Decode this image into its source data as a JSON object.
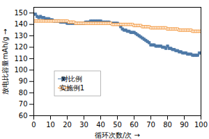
{
  "chart_data": {
    "type": "line",
    "xlabel": "循环次数/次",
    "ylabel": "放电比容量mAh/g",
    "x": [
      0,
      1,
      2,
      3,
      4,
      5,
      6,
      7,
      8,
      9,
      10,
      11,
      12,
      13,
      14,
      15,
      16,
      17,
      18,
      19,
      20,
      21,
      22,
      23,
      24,
      25,
      26,
      27,
      28,
      29,
      30,
      31,
      32,
      33,
      34,
      35,
      36,
      37,
      38,
      39,
      40,
      41,
      42,
      43,
      44,
      45,
      46,
      47,
      48,
      49,
      50,
      51,
      52,
      53,
      54,
      55,
      56,
      57,
      58,
      59,
      60,
      61,
      62,
      63,
      64,
      65,
      66,
      67,
      68,
      69,
      70,
      71,
      72,
      73,
      74,
      75,
      76,
      77,
      78,
      79,
      80,
      81,
      82,
      83,
      84,
      85,
      86,
      87,
      88,
      89,
      90,
      91,
      92,
      93,
      94,
      95,
      96,
      97,
      98,
      99,
      100
    ],
    "series": [
      {
        "name": "对比例",
        "marker": "square",
        "values": [
          149,
          149,
          147,
          146,
          147,
          146,
          146,
          145,
          145,
          145,
          144,
          144,
          143,
          143,
          143,
          143,
          142,
          142,
          142,
          142,
          141,
          141,
          141,
          141,
          141,
          141,
          141,
          141,
          141,
          141,
          141,
          142,
          142,
          142,
          143,
          143,
          143,
          143,
          143,
          143,
          143,
          142,
          142,
          142,
          142,
          142,
          141,
          141,
          141,
          141,
          141,
          140,
          138,
          136,
          135,
          135,
          134,
          134,
          133,
          133,
          133,
          132,
          131,
          130,
          129,
          128,
          127,
          126,
          125,
          124,
          122,
          122,
          122,
          121,
          121,
          121,
          121,
          120,
          120,
          119,
          121,
          119,
          119,
          118,
          118,
          117,
          117,
          116,
          116,
          115,
          115,
          115,
          114,
          114,
          114,
          113,
          113,
          113,
          113,
          115,
          115
        ]
      },
      {
        "name": "实施例1",
        "marker": "open_square",
        "values": [
          143,
          143,
          143,
          143,
          143,
          143,
          143,
          143,
          143,
          143,
          143,
          143,
          143,
          143,
          143,
          143,
          143,
          143,
          143,
          143,
          143,
          142,
          142,
          142,
          142,
          141,
          141,
          141,
          141,
          141,
          141,
          141,
          141,
          141,
          141,
          141,
          141,
          141,
          141,
          141,
          141,
          141,
          141,
          141,
          141,
          141,
          141,
          140,
          140,
          140,
          140,
          140,
          140,
          140,
          140,
          140,
          140,
          140,
          140,
          140,
          139,
          139,
          139,
          139,
          139,
          138,
          138,
          138,
          138,
          138,
          137,
          137,
          137,
          137,
          137,
          137,
          137,
          137,
          137,
          137,
          136,
          136,
          136,
          136,
          136,
          136,
          136,
          135,
          135,
          135,
          135,
          135,
          135,
          135,
          135,
          134,
          134,
          134,
          134,
          134,
          134
        ]
      }
    ],
    "xlim": [
      0,
      100
    ],
    "xticks": [
      0,
      10,
      20,
      30,
      40,
      50,
      60,
      70,
      80,
      90,
      100
    ],
    "ylim": [
      60,
      155
    ],
    "yticks": [
      60,
      70,
      80,
      90,
      100,
      110,
      120,
      130,
      140,
      150
    ],
    "grid": false,
    "legend": "lower left"
  }
}
